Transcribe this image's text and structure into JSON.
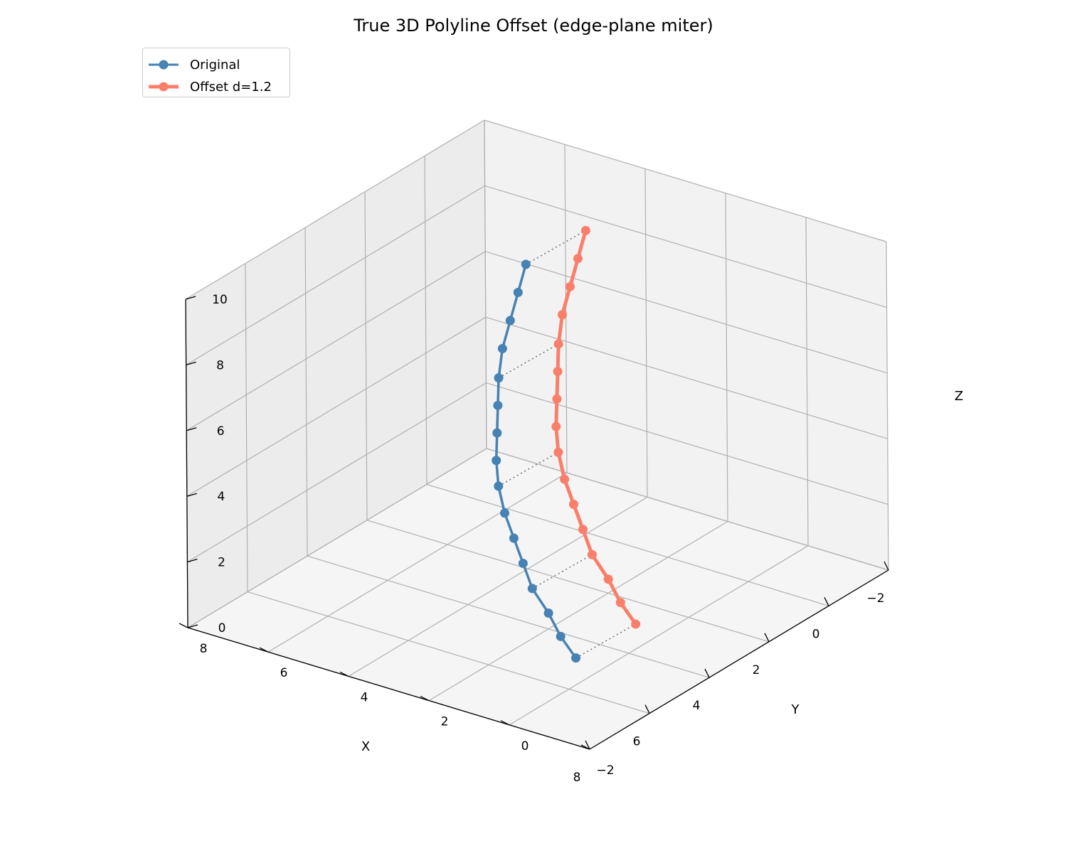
{
  "chart_data": {
    "type": "line3d",
    "title": "True 3D Polyline Offset (edge-plane miter)",
    "xlabel": "X",
    "ylabel": "Y",
    "zlabel": "Z",
    "xlim": [
      -2,
      8
    ],
    "ylim": [
      -2,
      8
    ],
    "zlim": [
      0,
      10
    ],
    "x_ticks": [
      "−2",
      "0",
      "2",
      "4",
      "6",
      "8"
    ],
    "y_ticks": [
      "−2",
      "0",
      "2",
      "4",
      "6",
      "8"
    ],
    "z_ticks": [
      "0",
      "2",
      "4",
      "6",
      "8",
      "10"
    ],
    "grid": true,
    "legend_position": "top-left",
    "series": [
      {
        "name": "Original",
        "color": "#4682b4",
        "points": [
          [
            5.5,
            0.2,
            0.6
          ],
          [
            5.6,
            0.5,
            1.2
          ],
          [
            5.6,
            0.8,
            1.8
          ],
          [
            5.6,
            1.2,
            2.4
          ],
          [
            5.5,
            1.5,
            3.0
          ],
          [
            5.4,
            1.8,
            3.6
          ],
          [
            5.3,
            2.1,
            4.2
          ],
          [
            5.1,
            2.4,
            4.8
          ],
          [
            4.9,
            2.6,
            5.4
          ],
          [
            4.6,
            2.8,
            6.0
          ],
          [
            4.3,
            3.0,
            6.6
          ],
          [
            4.0,
            3.2,
            7.2
          ],
          [
            3.6,
            3.4,
            7.8
          ],
          [
            3.2,
            3.5,
            8.4
          ],
          [
            2.8,
            3.6,
            9.0
          ],
          [
            2.4,
            3.7,
            9.6
          ]
        ]
      },
      {
        "name": "Offset d=1.2",
        "color": "#fa7f6a",
        "points": [
          [
            4.3,
            -0.4,
            1.2
          ],
          [
            4.4,
            -0.1,
            1.8
          ],
          [
            4.4,
            0.2,
            2.4
          ],
          [
            4.4,
            0.6,
            3.0
          ],
          [
            4.3,
            0.9,
            3.6
          ],
          [
            4.2,
            1.2,
            4.2
          ],
          [
            4.1,
            1.5,
            4.8
          ],
          [
            3.9,
            1.8,
            5.4
          ],
          [
            3.7,
            2.0,
            6.0
          ],
          [
            3.4,
            2.2,
            6.6
          ],
          [
            3.1,
            2.4,
            7.2
          ],
          [
            2.8,
            2.6,
            7.8
          ],
          [
            2.4,
            2.8,
            8.4
          ],
          [
            2.0,
            2.9,
            9.0
          ],
          [
            1.6,
            3.0,
            9.6
          ],
          [
            1.2,
            3.1,
            10.2
          ]
        ]
      }
    ],
    "connector_pairs": [
      0,
      3,
      7,
      11,
      15
    ],
    "connector_style": "dotted gray"
  }
}
